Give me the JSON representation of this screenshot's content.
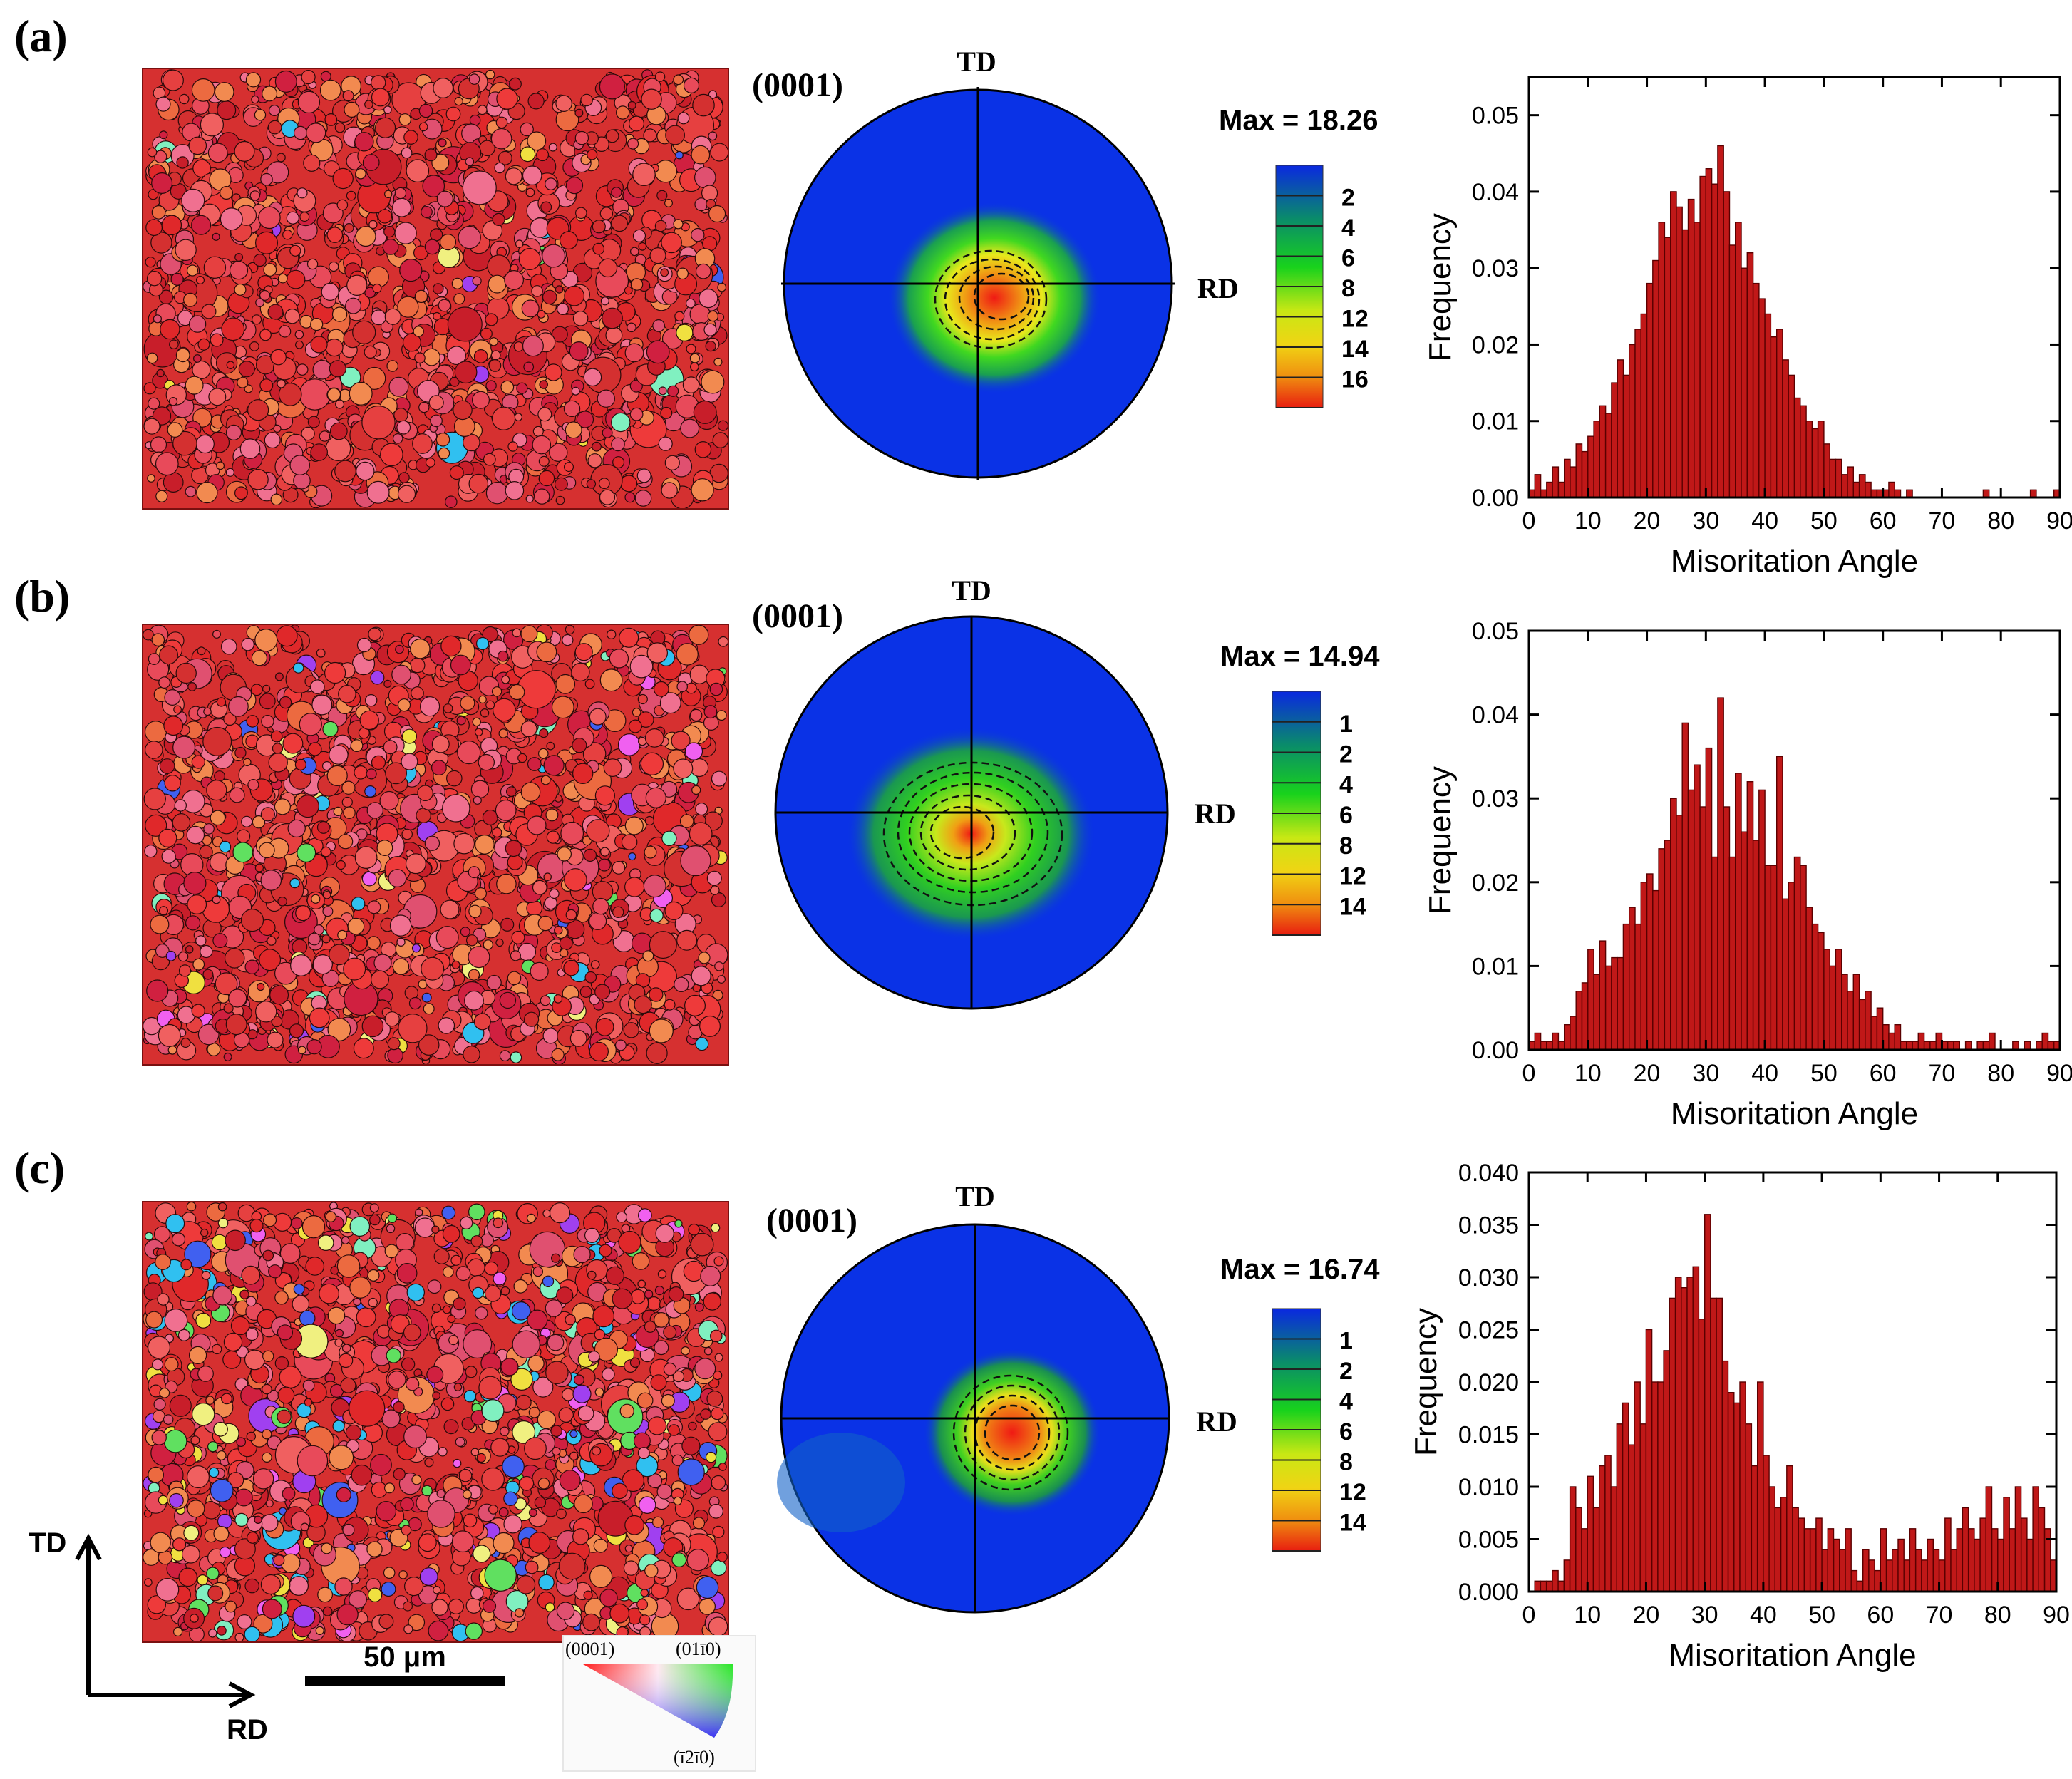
{
  "panel_labels": [
    "(a)",
    "(b)",
    "(c)"
  ],
  "axes_labels": {
    "td": "TD",
    "rd": "RD"
  },
  "pole_figure_plane": "(0001)",
  "scale_bar": {
    "label": "50 μm"
  },
  "ipf_key": {
    "corner_basal": "(0001)",
    "corner_prism": "(01ī0)",
    "corner_bottom": "(ī2ī0)"
  },
  "colors": {
    "bar_fill": "#c01818",
    "bar_edge": "#5a0000",
    "pole_bg": "#0a32e6",
    "map_base": "#d63030"
  },
  "panels": [
    {
      "id": "a",
      "max_label": "Max = 18.26",
      "colorbar_ticks": [
        "2",
        "4",
        "6",
        "8",
        "12",
        "14",
        "16"
      ]
    },
    {
      "id": "b",
      "max_label": "Max = 14.94",
      "colorbar_ticks": [
        "1",
        "2",
        "4",
        "6",
        "8",
        "12",
        "14"
      ]
    },
    {
      "id": "c",
      "max_label": "Max = 16.74",
      "colorbar_ticks": [
        "1",
        "2",
        "4",
        "6",
        "8",
        "12",
        "14"
      ]
    }
  ],
  "chart_data": [
    {
      "type": "bar",
      "panel": "a",
      "xlabel": "Misoritation Angle",
      "ylabel": "Frequency",
      "xlim": [
        0,
        90
      ],
      "ylim": [
        0,
        0.055
      ],
      "xticks": [
        "0",
        "10",
        "20",
        "30",
        "40",
        "50",
        "60",
        "70",
        "80",
        "90"
      ],
      "yticks": [
        "0.00",
        "0.01",
        "0.02",
        "0.03",
        "0.04",
        "0.05"
      ],
      "bin_width": 1,
      "x": [
        1,
        2,
        3,
        4,
        5,
        6,
        7,
        8,
        9,
        10,
        11,
        12,
        13,
        14,
        15,
        16,
        17,
        18,
        19,
        20,
        21,
        22,
        23,
        24,
        25,
        26,
        27,
        28,
        29,
        30,
        31,
        32,
        33,
        34,
        35,
        36,
        37,
        38,
        39,
        40,
        41,
        42,
        43,
        44,
        45,
        46,
        47,
        48,
        49,
        50,
        51,
        52,
        53,
        54,
        55,
        56,
        57,
        58,
        59,
        60,
        61,
        62,
        63,
        64,
        65,
        66,
        67,
        68,
        69,
        70,
        71,
        72,
        73,
        74,
        75,
        76,
        77,
        78,
        79,
        80,
        81,
        82,
        83,
        84,
        85,
        86,
        87,
        88,
        89,
        90
      ],
      "values": [
        0.001,
        0.003,
        0.001,
        0.002,
        0.004,
        0.002,
        0.005,
        0.004,
        0.007,
        0.006,
        0.008,
        0.01,
        0.012,
        0.011,
        0.015,
        0.018,
        0.016,
        0.02,
        0.022,
        0.024,
        0.028,
        0.031,
        0.036,
        0.034,
        0.04,
        0.038,
        0.035,
        0.039,
        0.036,
        0.042,
        0.043,
        0.041,
        0.046,
        0.04,
        0.033,
        0.036,
        0.03,
        0.032,
        0.028,
        0.026,
        0.024,
        0.021,
        0.022,
        0.018,
        0.016,
        0.013,
        0.012,
        0.01,
        0.009,
        0.01,
        0.007,
        0.005,
        0.005,
        0.003,
        0.004,
        0.002,
        0.003,
        0.002,
        0.001,
        0.001,
        0.001,
        0.002,
        0.001,
        0,
        0.001,
        0,
        0,
        0,
        0,
        0,
        0,
        0,
        0,
        0,
        0,
        0,
        0,
        0.001,
        0,
        0,
        0,
        0,
        0,
        0,
        0,
        0.001,
        0,
        0,
        0,
        0.001
      ]
    },
    {
      "type": "bar",
      "panel": "b",
      "xlabel": "Misoritation Angle",
      "ylabel": "Frequency",
      "xlim": [
        0,
        90
      ],
      "ylim": [
        0,
        0.05
      ],
      "xticks": [
        "0",
        "10",
        "20",
        "30",
        "40",
        "50",
        "60",
        "70",
        "80",
        "90"
      ],
      "yticks": [
        "0.00",
        "0.01",
        "0.02",
        "0.03",
        "0.04",
        "0.05"
      ],
      "bin_width": 1,
      "x": [
        1,
        2,
        3,
        4,
        5,
        6,
        7,
        8,
        9,
        10,
        11,
        12,
        13,
        14,
        15,
        16,
        17,
        18,
        19,
        20,
        21,
        22,
        23,
        24,
        25,
        26,
        27,
        28,
        29,
        30,
        31,
        32,
        33,
        34,
        35,
        36,
        37,
        38,
        39,
        40,
        41,
        42,
        43,
        44,
        45,
        46,
        47,
        48,
        49,
        50,
        51,
        52,
        53,
        54,
        55,
        56,
        57,
        58,
        59,
        60,
        61,
        62,
        63,
        64,
        65,
        66,
        67,
        68,
        69,
        70,
        71,
        72,
        73,
        74,
        75,
        76,
        77,
        78,
        79,
        80,
        81,
        82,
        83,
        84,
        85,
        86,
        87,
        88,
        89,
        90
      ],
      "values": [
        0.001,
        0.002,
        0.001,
        0.001,
        0.002,
        0.001,
        0.003,
        0.004,
        0.007,
        0.008,
        0.012,
        0.009,
        0.013,
        0.01,
        0.011,
        0.011,
        0.015,
        0.017,
        0.015,
        0.02,
        0.021,
        0.019,
        0.024,
        0.025,
        0.03,
        0.028,
        0.039,
        0.031,
        0.034,
        0.029,
        0.036,
        0.023,
        0.042,
        0.029,
        0.023,
        0.033,
        0.026,
        0.032,
        0.025,
        0.031,
        0.022,
        0.022,
        0.035,
        0.018,
        0.02,
        0.023,
        0.022,
        0.017,
        0.015,
        0.014,
        0.012,
        0.01,
        0.012,
        0.009,
        0.007,
        0.009,
        0.006,
        0.007,
        0.004,
        0.005,
        0.003,
        0.002,
        0.003,
        0.001,
        0.001,
        0.001,
        0.002,
        0.001,
        0.001,
        0.002,
        0.001,
        0.001,
        0.001,
        0,
        0.001,
        0,
        0.001,
        0.001,
        0.002,
        0,
        0,
        0,
        0.001,
        0,
        0.001,
        0,
        0.001,
        0.002,
        0.001,
        0.001
      ]
    },
    {
      "type": "bar",
      "panel": "c",
      "xlabel": "Misoritation Angle",
      "ylabel": "Frequency",
      "xlim": [
        0,
        90
      ],
      "ylim": [
        0,
        0.04
      ],
      "xticks": [
        "0",
        "10",
        "20",
        "30",
        "40",
        "50",
        "60",
        "70",
        "80",
        "90"
      ],
      "yticks": [
        "0.000",
        "0.005",
        "0.010",
        "0.015",
        "0.020",
        "0.025",
        "0.030",
        "0.035",
        "0.040"
      ],
      "bin_width": 1,
      "x": [
        1,
        2,
        3,
        4,
        5,
        6,
        7,
        8,
        9,
        10,
        11,
        12,
        13,
        14,
        15,
        16,
        17,
        18,
        19,
        20,
        21,
        22,
        23,
        24,
        25,
        26,
        27,
        28,
        29,
        30,
        31,
        32,
        33,
        34,
        35,
        36,
        37,
        38,
        39,
        40,
        41,
        42,
        43,
        44,
        45,
        46,
        47,
        48,
        49,
        50,
        51,
        52,
        53,
        54,
        55,
        56,
        57,
        58,
        59,
        60,
        61,
        62,
        63,
        64,
        65,
        66,
        67,
        68,
        69,
        70,
        71,
        72,
        73,
        74,
        75,
        76,
        77,
        78,
        79,
        80,
        81,
        82,
        83,
        84,
        85,
        86,
        87,
        88,
        89,
        90
      ],
      "values": [
        0,
        0.001,
        0.001,
        0.001,
        0.002,
        0.001,
        0.003,
        0.01,
        0.008,
        0.006,
        0.011,
        0.008,
        0.012,
        0.013,
        0.01,
        0.016,
        0.018,
        0.014,
        0.02,
        0.016,
        0.025,
        0.02,
        0.02,
        0.023,
        0.028,
        0.03,
        0.029,
        0.03,
        0.031,
        0.026,
        0.036,
        0.028,
        0.028,
        0.022,
        0.019,
        0.018,
        0.02,
        0.016,
        0.012,
        0.02,
        0.013,
        0.01,
        0.008,
        0.009,
        0.012,
        0.008,
        0.007,
        0.006,
        0.006,
        0.007,
        0.004,
        0.006,
        0.005,
        0.004,
        0.006,
        0.002,
        0.001,
        0.004,
        0.003,
        0.002,
        0.006,
        0.003,
        0.004,
        0.005,
        0.003,
        0.006,
        0.004,
        0.003,
        0.005,
        0.004,
        0.003,
        0.007,
        0.004,
        0.006,
        0.008,
        0.006,
        0.005,
        0.007,
        0.01,
        0.006,
        0.005,
        0.009,
        0.006,
        0.01,
        0.007,
        0.005,
        0.01,
        0.008,
        0.006,
        0.003
      ]
    }
  ]
}
